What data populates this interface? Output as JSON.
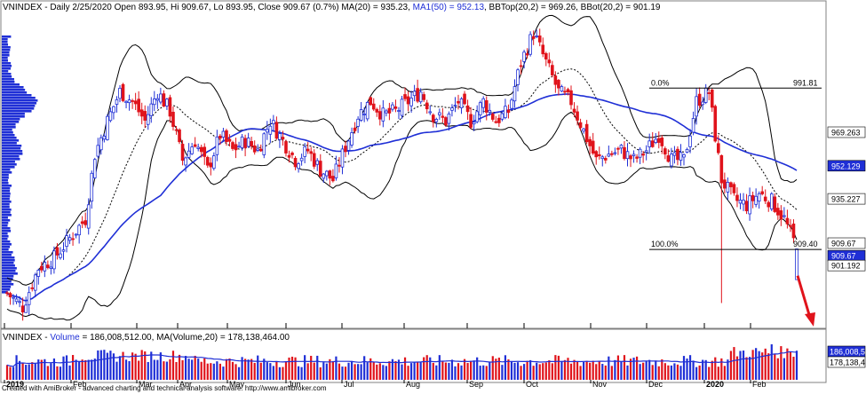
{
  "credit": "Created with AmiBroker - advanced charting and technical analysis software. http://www.amibroker.com",
  "price_pane": {
    "title_segments": [
      {
        "text": "VNINDEX - Daily 2/25/2020 Open 893.95, Hi 909.67, Lo 893.95, Close 909.67 (0.7%) MA(20) = 935.23, ",
        "color": "#000000"
      },
      {
        "text": "MA1(50) = 952.13",
        "color": "#1f2fd6"
      },
      {
        "text": ", BBTop(20,2) = 969.26, BBot(20,2) = 901.19",
        "color": "#000000"
      }
    ],
    "axis_tags": [
      {
        "label": "969.263",
        "value": 969.263,
        "bg": "#ffffff",
        "fg": "#000000"
      },
      {
        "label": "952.129",
        "value": 952.129,
        "bg": "#1f2fd6",
        "fg": "#ffffff"
      },
      {
        "label": "935.227",
        "value": 935.227,
        "bg": "#ffffff",
        "fg": "#000000"
      },
      {
        "label": "909.67",
        "value": 912.6,
        "bg": "#ffffff",
        "fg": "#000000"
      },
      {
        "label": "909.67",
        "value": 906.2,
        "bg": "#1f2fd6",
        "fg": "#ffffff"
      },
      {
        "label": "901.192",
        "value": 901.192,
        "bg": "#ffffff",
        "fg": "#000000"
      }
    ],
    "fib_levels": [
      {
        "pct": "0.0%",
        "value": 991.81
      },
      {
        "pct": "100.0%",
        "value": 909.4
      }
    ]
  },
  "volume_pane": {
    "title_segments": [
      {
        "text": "VNINDEX - ",
        "color": "#000000"
      },
      {
        "text": "Volume",
        "color": "#1f2fd6"
      },
      {
        "text": " = 186,008,512.00, MA(Volume,20) = 178,138,464.00",
        "color": "#000000"
      }
    ],
    "axis_tags": [
      {
        "label": "186,008,5",
        "bg": "#1f2fd6",
        "fg": "#ffffff"
      },
      {
        "label": "178,138,4",
        "bg": "#ffffff",
        "fg": "#000000"
      }
    ]
  },
  "colors": {
    "up": "#1f2fd6",
    "down": "#e0131b",
    "ma50": "#1f2fd6",
    "bands": "#000000",
    "ma20": "#000000",
    "arrow": "#e0131b",
    "profile": "#1f2fd6"
  },
  "chart_data": [
    {
      "type": "candlestick",
      "title": "VNINDEX - Daily",
      "x_tick_labels": [
        "2019",
        "Feb",
        "Mar",
        "Apr",
        "May",
        "Jun",
        "Jul",
        "Aug",
        "Sep",
        "Oct",
        "Nov",
        "Dec",
        "2020",
        "Feb"
      ],
      "y_range": [
        870,
        1030
      ],
      "last_bar": {
        "date": "2/25/2020",
        "open": 893.95,
        "high": 909.67,
        "low": 893.95,
        "close": 909.67,
        "change_pct": 0.7
      },
      "indicators": {
        "MA(20)": 935.23,
        "MA1(50)": 952.13,
        "BBTop(20,2)": 969.26,
        "BBot(20,2)": 901.19
      },
      "fibonacci": [
        {
          "level": "0.0%",
          "price": 991.81
        },
        {
          "level": "100.0%",
          "price": 909.4
        }
      ],
      "series": [
        {
          "name": "VNINDEX",
          "approx_close_path": [
            [
              0,
              887
            ],
            [
              5,
              880
            ],
            [
              10,
              900
            ],
            [
              15,
              905
            ],
            [
              20,
              915
            ],
            [
              25,
              925
            ],
            [
              28,
              958
            ],
            [
              32,
              975
            ],
            [
              36,
              990
            ],
            [
              40,
              985
            ],
            [
              44,
              975
            ],
            [
              48,
              990
            ],
            [
              52,
              980
            ],
            [
              56,
              955
            ],
            [
              60,
              965
            ],
            [
              64,
              950
            ],
            [
              68,
              968
            ],
            [
              72,
              960
            ],
            [
              76,
              965
            ],
            [
              80,
              960
            ],
            [
              84,
              975
            ],
            [
              88,
              965
            ],
            [
              92,
              955
            ],
            [
              96,
              960
            ],
            [
              100,
              950
            ],
            [
              104,
              945
            ],
            [
              108,
              962
            ],
            [
              112,
              978
            ],
            [
              116,
              985
            ],
            [
              120,
              978
            ],
            [
              124,
              980
            ],
            [
              128,
              985
            ],
            [
              132,
              990
            ],
            [
              136,
              978
            ],
            [
              140,
              975
            ],
            [
              144,
              985
            ],
            [
              148,
              975
            ],
            [
              152,
              985
            ],
            [
              156,
              975
            ],
            [
              160,
              980
            ],
            [
              164,
              1005
            ],
            [
              168,
              1020
            ],
            [
              172,
              1005
            ],
            [
              176,
              990
            ],
            [
              180,
              985
            ],
            [
              184,
              970
            ],
            [
              188,
              955
            ],
            [
              192,
              958
            ],
            [
              196,
              960
            ],
            [
              200,
              955
            ],
            [
              204,
              960
            ],
            [
              208,
              968
            ],
            [
              212,
              955
            ],
            [
              216,
              955
            ],
            [
              220,
              985
            ],
            [
              224,
              990
            ],
            [
              228,
              945
            ],
            [
              232,
              935
            ],
            [
              236,
              932
            ],
            [
              240,
              938
            ],
            [
              244,
              934
            ],
            [
              248,
              925
            ],
            [
              252,
              910
            ]
          ]
        },
        {
          "name": "MA(20)",
          "style": "dotted"
        },
        {
          "name": "MA1(50)",
          "style": "solid"
        },
        {
          "name": "BBTop(20,2)",
          "style": "solid"
        },
        {
          "name": "BBot(20,2)",
          "style": "solid"
        }
      ]
    },
    {
      "type": "bar",
      "title": "VNINDEX - Volume",
      "last_value": 186008512,
      "ma_volume_20": 178138464,
      "series": [
        {
          "name": "Volume"
        },
        {
          "name": "MA(Volume,20)"
        }
      ]
    }
  ]
}
